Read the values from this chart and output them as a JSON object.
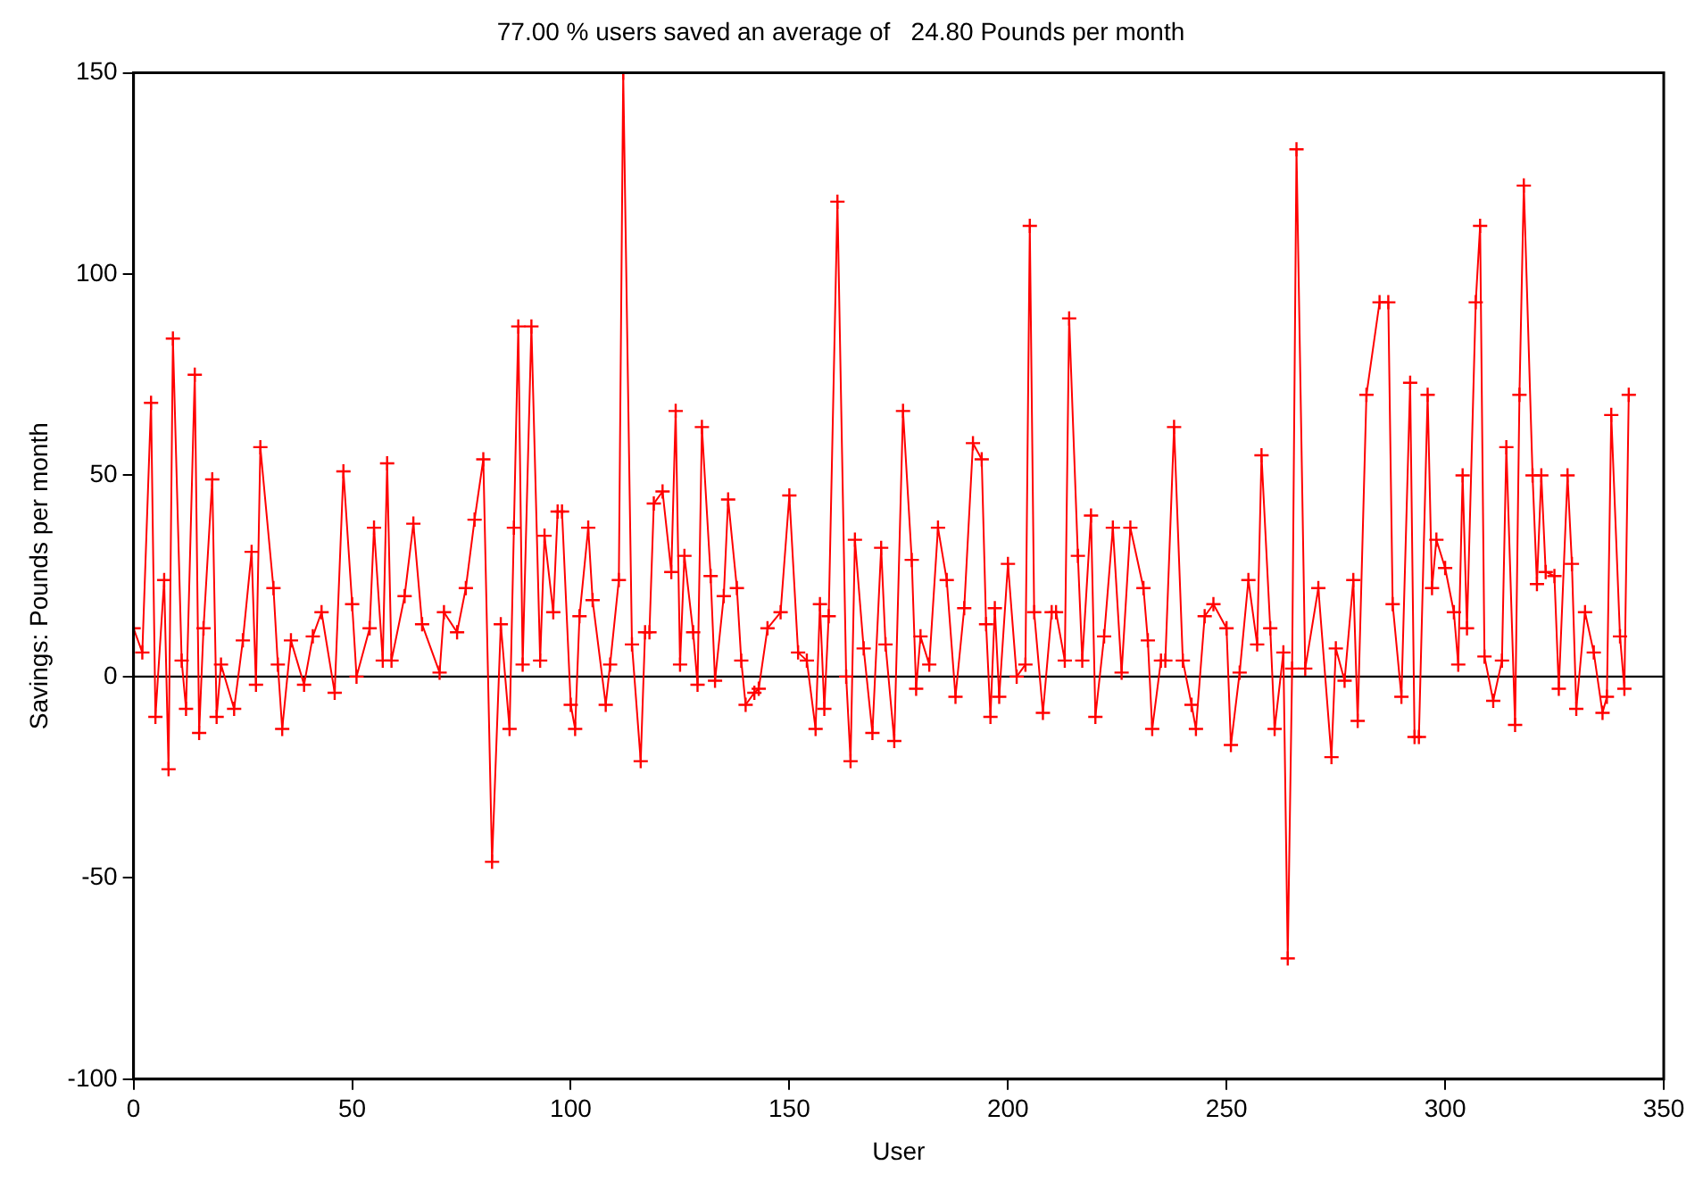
{
  "chart_data": {
    "type": "line",
    "title": "77.00 % users saved an average of   24.80 Pounds per month",
    "xlabel": "User",
    "ylabel": "Savings: Pounds per month",
    "xlim": [
      0,
      350
    ],
    "xticks": [
      0,
      50,
      100,
      150,
      200,
      250,
      300,
      350
    ],
    "ylim": [
      -100,
      150
    ],
    "yticks": [
      -100,
      -50,
      0,
      50,
      100,
      150
    ],
    "grid": false,
    "legend": false,
    "marker": "cross",
    "line_style": "solid",
    "ref_lines": [
      {
        "axis": "y",
        "value": 0,
        "color": "#000000"
      }
    ],
    "series": [
      {
        "color": "#ff0000",
        "x": [
          0,
          2,
          4,
          5,
          7,
          8,
          9,
          11,
          12,
          14,
          15,
          16,
          18,
          19,
          20,
          23,
          25,
          27,
          28,
          29,
          32,
          33,
          34,
          36,
          39,
          41,
          43,
          46,
          48,
          50,
          51,
          54,
          55,
          57,
          58,
          59,
          62,
          64,
          66,
          70,
          71,
          74,
          76,
          78,
          80,
          82,
          84,
          86,
          87,
          88,
          89,
          91,
          93,
          94,
          96,
          97,
          98,
          100,
          101,
          102,
          104,
          105,
          108,
          109,
          111,
          112,
          114,
          116,
          117,
          118,
          119,
          121,
          123,
          124,
          125,
          126,
          128,
          129,
          130,
          132,
          133,
          135,
          136,
          138,
          139,
          140,
          142,
          143,
          145,
          148,
          150,
          152,
          154,
          156,
          157,
          158,
          159,
          161,
          163,
          164,
          165,
          167,
          169,
          171,
          172,
          174,
          176,
          178,
          179,
          180,
          182,
          184,
          186,
          188,
          190,
          192,
          194,
          195,
          196,
          197,
          198,
          200,
          202,
          204,
          205,
          206,
          208,
          210,
          211,
          213,
          214,
          216,
          217,
          219,
          220,
          222,
          224,
          226,
          228,
          231,
          232,
          233,
          235,
          236,
          238,
          240,
          242,
          243,
          245,
          247,
          250,
          251,
          253,
          255,
          257,
          258,
          260,
          261,
          263,
          264,
          265,
          266,
          268,
          271,
          274,
          275,
          277,
          279,
          280,
          282,
          285,
          287,
          288,
          290,
          292,
          293,
          294,
          296,
          297,
          298,
          300,
          302,
          303,
          304,
          305,
          307,
          308,
          309,
          311,
          313,
          314,
          316,
          317,
          318,
          320,
          321,
          322,
          323,
          325,
          326,
          328,
          329,
          330,
          332,
          334,
          336,
          337,
          338,
          340,
          341,
          342
        ],
        "values": [
          12,
          6,
          68,
          -10,
          24,
          -23,
          84,
          4,
          -8,
          75,
          -14,
          12,
          49,
          -10,
          3,
          -8,
          9,
          31,
          -2,
          57,
          22,
          3,
          -13,
          9,
          -2,
          10,
          16,
          -4,
          51,
          18,
          0,
          12,
          37,
          4,
          53,
          4,
          20,
          38,
          13,
          1,
          16,
          11,
          22,
          39,
          54,
          -46,
          13,
          -13,
          37,
          87,
          3,
          87,
          4,
          35,
          16,
          41,
          41,
          -7,
          -13,
          15,
          37,
          19,
          -7,
          3,
          24,
          150,
          8,
          -21,
          11,
          11,
          43,
          46,
          26,
          66,
          3,
          30,
          11,
          -2,
          62,
          25,
          -1,
          20,
          44,
          22,
          4,
          -7,
          -4,
          -3,
          12,
          16,
          45,
          6,
          4,
          -13,
          18,
          -8,
          15,
          118,
          0,
          -21,
          34,
          7,
          -14,
          32,
          8,
          -16,
          66,
          29,
          -3,
          10,
          3,
          37,
          24,
          -5,
          17,
          58,
          54,
          13,
          -10,
          17,
          -5,
          28,
          0,
          3,
          112,
          16,
          -9,
          16,
          16,
          4,
          89,
          30,
          4,
          40,
          -10,
          10,
          37,
          1,
          37,
          22,
          9,
          -13,
          4,
          4,
          62,
          4,
          -7,
          -13,
          15,
          18,
          12,
          -17,
          1,
          24,
          8,
          55,
          12,
          -13,
          6,
          -70,
          2,
          131,
          2,
          22,
          -20,
          7,
          -1,
          24,
          -11,
          70,
          93,
          93,
          18,
          -5,
          73,
          -15,
          -15,
          70,
          22,
          34,
          27,
          16,
          3,
          50,
          12,
          93,
          112,
          5,
          -6,
          4,
          57,
          -12,
          70,
          122,
          50,
          23,
          50,
          26,
          25,
          -3,
          50,
          28,
          -8,
          16,
          6,
          -9,
          -5,
          65,
          10,
          -3,
          70
        ]
      }
    ]
  }
}
